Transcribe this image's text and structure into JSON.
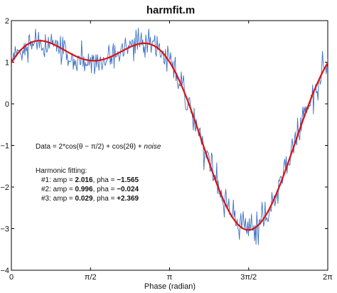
{
  "chart_data": {
    "type": "line",
    "title": "harmfit.m",
    "xlabel": "Phase (radian)",
    "ylabel": "",
    "xlim": [
      0,
      6.2832
    ],
    "ylim": [
      -4,
      2
    ],
    "grid": false,
    "x_ticks": [
      {
        "value": 0,
        "label": "0"
      },
      {
        "value": 1.5708,
        "label": "π/2"
      },
      {
        "value": 3.1416,
        "label": "π"
      },
      {
        "value": 4.7124,
        "label": "3π/2"
      },
      {
        "value": 6.2832,
        "label": "2π"
      }
    ],
    "y_ticks": [
      {
        "value": 2,
        "label": "2"
      },
      {
        "value": 1,
        "label": "1"
      },
      {
        "value": 0,
        "label": "0"
      },
      {
        "value": -1,
        "label": "−1"
      },
      {
        "value": -2,
        "label": "−2"
      },
      {
        "value": -3,
        "label": "−3"
      },
      {
        "value": -4,
        "label": "−4"
      }
    ],
    "series": [
      {
        "name": "",
        "kind": "noisy-data",
        "color": "#3a6fc4",
        "noise_sd": 0.18,
        "points": 420,
        "model": {
          "c0": 0,
          "c1": 2,
          "p1": -1.5708,
          "c2": 1,
          "p2": 0
        }
      },
      {
        "name": "",
        "kind": "harmonic-fit",
        "color": "#dd1111",
        "points": 300,
        "model": {
          "c0": 0,
          "c1": 2.016,
          "p1": -1.565,
          "c2": 0.996,
          "p2": -0.024,
          "c3": 0.029,
          "p3": 2.369
        }
      }
    ],
    "annotations": {
      "data_eq": {
        "text": "Data = 2*cos(θ − π/2) + cos(2θ) +  ",
        "noise": "noise"
      },
      "fitting_title": "Harmonic fitting:",
      "fits": [
        {
          "prefix": "#1: amp = ",
          "amp": "2.016",
          "mid": ", pha = ",
          "pha": "−1.565"
        },
        {
          "prefix": "#2: amp = ",
          "amp": "0.996",
          "mid": ", pha = ",
          "pha": "−0.024"
        },
        {
          "prefix": "#3: amp = ",
          "amp": "0.029",
          "mid": ", pha = ",
          "pha": "+2.369"
        }
      ]
    }
  }
}
